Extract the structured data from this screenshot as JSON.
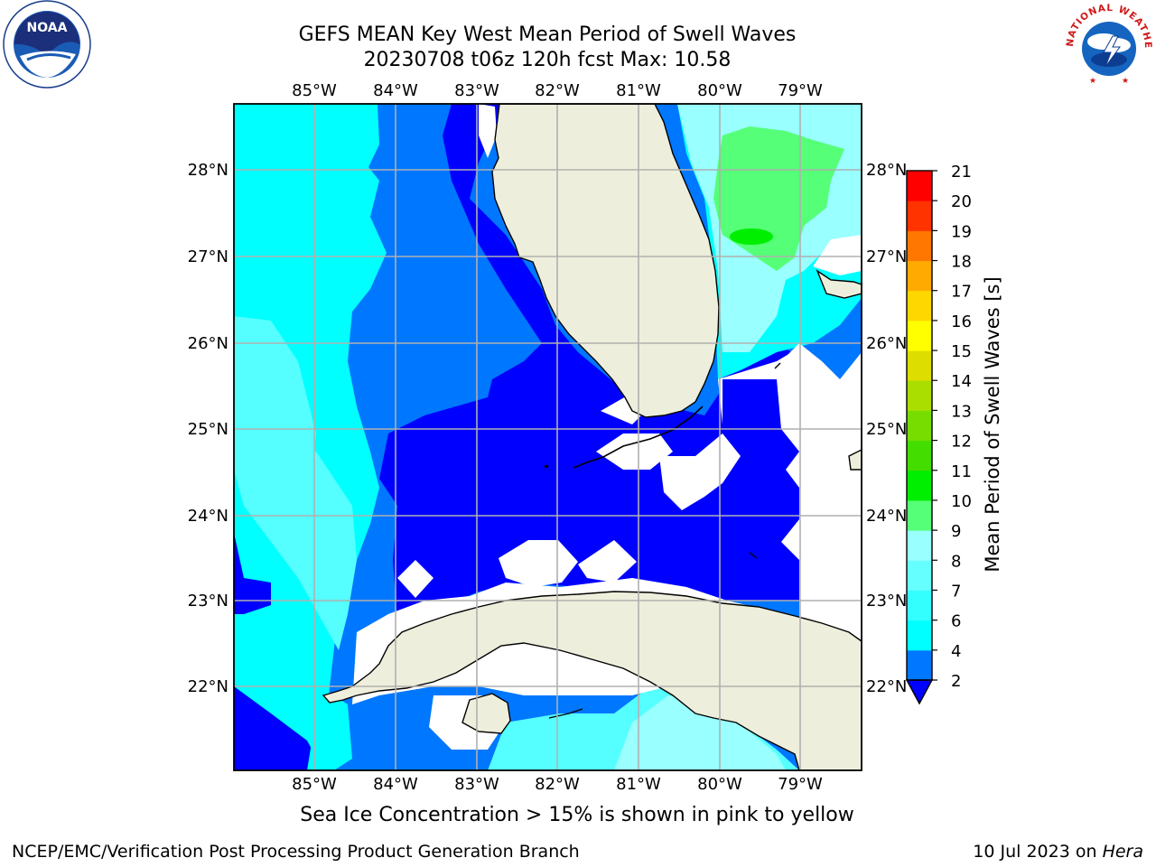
{
  "header": {
    "title_line1": "GEFS MEAN Key West Mean Period of Swell Waves",
    "title_line2": "20230708 t06z 120h fcst   Max: 10.58"
  },
  "map": {
    "lon_labels": [
      "85°W",
      "84°W",
      "83°W",
      "82°W",
      "81°W",
      "80°W",
      "79°W"
    ],
    "lat_labels": [
      "28°N",
      "27°N",
      "26°N",
      "25°N",
      "24°N",
      "23°N",
      "22°N"
    ],
    "land_color": "#eeeedc",
    "grid_color": "#b0b0b0"
  },
  "colorbar": {
    "label": "Mean Period of Swell Waves [s]",
    "ticks": [
      "2",
      "4",
      "6",
      "7",
      "8",
      "9",
      "10",
      "11",
      "12",
      "13",
      "14",
      "15",
      "16",
      "17",
      "18",
      "19",
      "20",
      "21"
    ],
    "colors": [
      "#0000ff",
      "#0077ff",
      "#00ffff",
      "#33ffff",
      "#66ffff",
      "#99ffff",
      "#55ff77",
      "#00ee00",
      "#44dd00",
      "#77dd00",
      "#aadd00",
      "#dddd00",
      "#ffff00",
      "#ffd700",
      "#ffaa00",
      "#ff7700",
      "#ff3300",
      "#ff0000"
    ]
  },
  "caption": "Sea Ice Concentration > 15% is shown in pink to yellow",
  "footer": {
    "left": "NCEP/EMC/Verification Post Processing Product Generation Branch",
    "right_prefix": "10 Jul 2023 on ",
    "right_host": "Hera"
  },
  "logos": {
    "noaa_text": "NOAA",
    "nws_ring_text": "NATIONAL WEATHER SERVICE"
  }
}
